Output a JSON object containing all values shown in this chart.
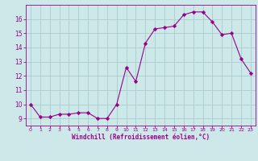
{
  "x": [
    0,
    1,
    2,
    3,
    4,
    5,
    6,
    7,
    8,
    9,
    10,
    11,
    12,
    13,
    14,
    15,
    16,
    17,
    18,
    19,
    20,
    21,
    22,
    23
  ],
  "y": [
    10.0,
    9.1,
    9.1,
    9.3,
    9.3,
    9.4,
    9.4,
    9.0,
    9.0,
    10.0,
    12.6,
    11.6,
    14.3,
    15.3,
    15.4,
    15.5,
    16.3,
    16.5,
    16.5,
    15.8,
    14.9,
    15.0,
    13.2,
    12.2
  ],
  "line_color": "#99008a",
  "marker": "D",
  "marker_size": 2.2,
  "bg_color": "#cce8e8",
  "grid_color": "#aacccc",
  "xlabel": "Windchill (Refroidissement éolien,°C)",
  "xlabel_color": "#99008a",
  "tick_color": "#99008a",
  "ylim": [
    8.5,
    17.0
  ],
  "xlim": [
    -0.5,
    23.5
  ],
  "yticks": [
    9,
    10,
    11,
    12,
    13,
    14,
    15,
    16
  ],
  "xticks": [
    0,
    1,
    2,
    3,
    4,
    5,
    6,
    7,
    8,
    9,
    10,
    11,
    12,
    13,
    14,
    15,
    16,
    17,
    18,
    19,
    20,
    21,
    22,
    23
  ],
  "figsize": [
    3.2,
    2.0
  ],
  "dpi": 100
}
